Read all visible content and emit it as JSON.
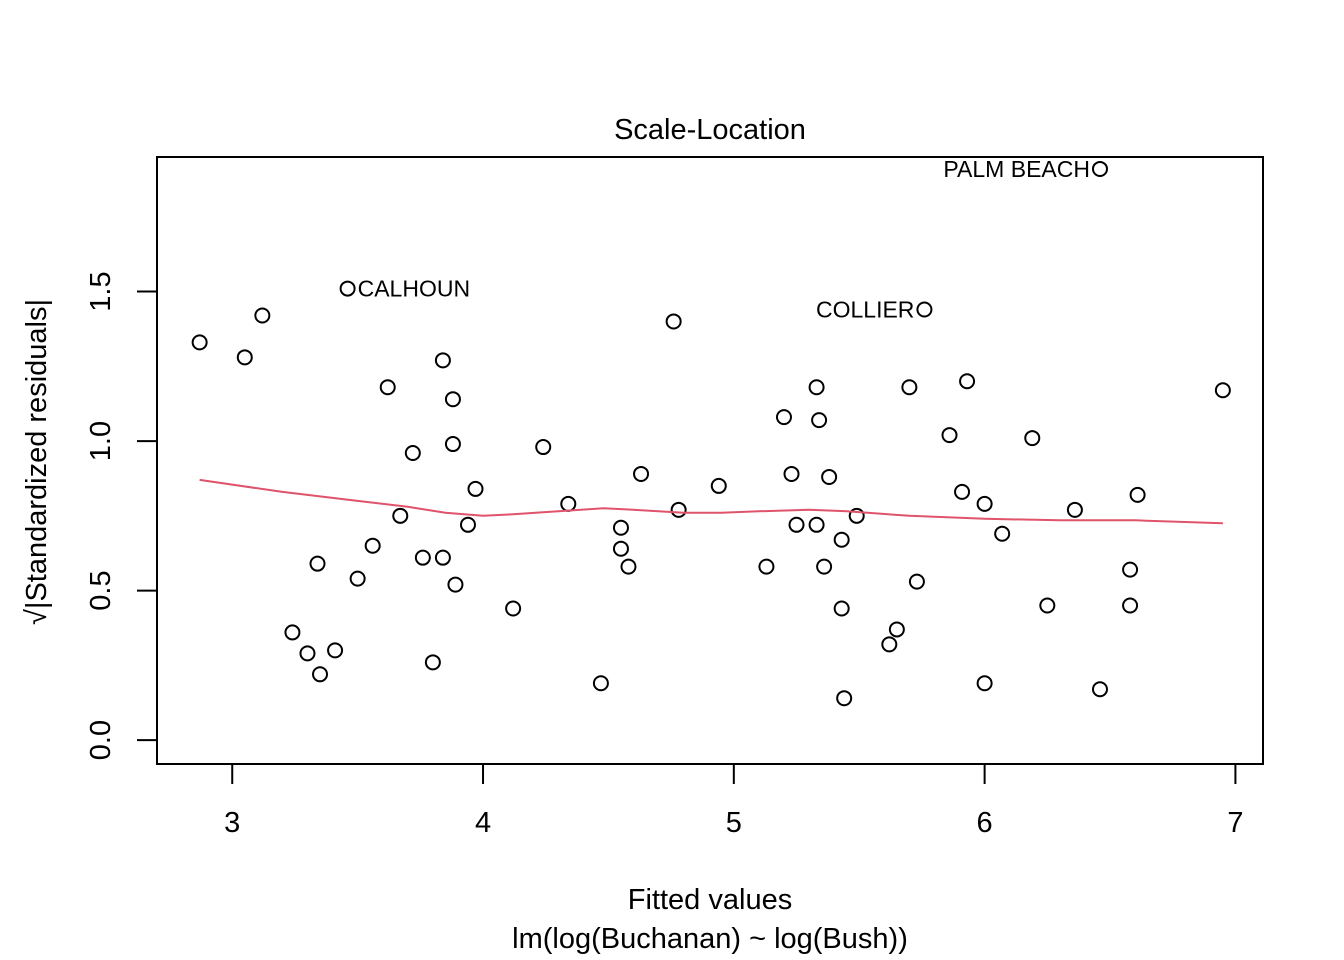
{
  "chart_data": {
    "type": "scatter",
    "title": "Scale-Location",
    "xlabel": "Fitted values",
    "xsublabel": "lm(log(Buchanan) ~ log(Bush))",
    "ylabel": "√|Standardized residuals|",
    "xlim": [
      2.7,
      7.11
    ],
    "ylim": [
      -0.08,
      1.95
    ],
    "xticks": [
      "3",
      "4",
      "5",
      "6",
      "7"
    ],
    "yticks": [
      "0.0",
      "0.5",
      "1.0",
      "1.5"
    ],
    "grid": false,
    "point_color": "#000000",
    "smooth_color": "#DF536B",
    "points": [
      {
        "x": 2.87,
        "y": 1.33
      },
      {
        "x": 3.05,
        "y": 1.28
      },
      {
        "x": 3.12,
        "y": 1.42
      },
      {
        "x": 3.24,
        "y": 0.36
      },
      {
        "x": 3.3,
        "y": 0.29
      },
      {
        "x": 3.34,
        "y": 0.59
      },
      {
        "x": 3.35,
        "y": 0.22
      },
      {
        "x": 3.41,
        "y": 0.3
      },
      {
        "x": 3.46,
        "y": 1.51
      },
      {
        "x": 3.5,
        "y": 0.54
      },
      {
        "x": 3.56,
        "y": 0.65
      },
      {
        "x": 3.62,
        "y": 1.18
      },
      {
        "x": 3.67,
        "y": 0.75
      },
      {
        "x": 3.72,
        "y": 0.96
      },
      {
        "x": 3.76,
        "y": 0.61
      },
      {
        "x": 3.8,
        "y": 0.26
      },
      {
        "x": 3.84,
        "y": 0.61
      },
      {
        "x": 3.84,
        "y": 1.27
      },
      {
        "x": 3.88,
        "y": 1.14
      },
      {
        "x": 3.88,
        "y": 0.99
      },
      {
        "x": 3.89,
        "y": 0.52
      },
      {
        "x": 3.94,
        "y": 0.72
      },
      {
        "x": 3.97,
        "y": 0.84
      },
      {
        "x": 4.12,
        "y": 0.44
      },
      {
        "x": 4.24,
        "y": 0.98
      },
      {
        "x": 4.34,
        "y": 0.79
      },
      {
        "x": 4.47,
        "y": 0.19
      },
      {
        "x": 4.55,
        "y": 0.64
      },
      {
        "x": 4.55,
        "y": 0.71
      },
      {
        "x": 4.58,
        "y": 0.58
      },
      {
        "x": 4.63,
        "y": 0.89
      },
      {
        "x": 4.76,
        "y": 1.4
      },
      {
        "x": 4.78,
        "y": 0.77
      },
      {
        "x": 4.94,
        "y": 0.85
      },
      {
        "x": 5.13,
        "y": 0.58
      },
      {
        "x": 5.2,
        "y": 1.08
      },
      {
        "x": 5.23,
        "y": 0.89
      },
      {
        "x": 5.25,
        "y": 0.72
      },
      {
        "x": 5.33,
        "y": 1.18
      },
      {
        "x": 5.33,
        "y": 0.72
      },
      {
        "x": 5.34,
        "y": 1.07
      },
      {
        "x": 5.36,
        "y": 0.58
      },
      {
        "x": 5.38,
        "y": 0.88
      },
      {
        "x": 5.43,
        "y": 0.44
      },
      {
        "x": 5.43,
        "y": 0.67
      },
      {
        "x": 5.44,
        "y": 0.14
      },
      {
        "x": 5.49,
        "y": 0.75
      },
      {
        "x": 5.62,
        "y": 0.32
      },
      {
        "x": 5.65,
        "y": 0.37
      },
      {
        "x": 5.7,
        "y": 1.18
      },
      {
        "x": 5.73,
        "y": 0.53
      },
      {
        "x": 5.76,
        "y": 1.44
      },
      {
        "x": 5.86,
        "y": 1.02
      },
      {
        "x": 5.91,
        "y": 0.83
      },
      {
        "x": 5.93,
        "y": 1.2
      },
      {
        "x": 6.0,
        "y": 0.19
      },
      {
        "x": 6.0,
        "y": 0.79
      },
      {
        "x": 6.07,
        "y": 0.69
      },
      {
        "x": 6.19,
        "y": 1.01
      },
      {
        "x": 6.25,
        "y": 0.45
      },
      {
        "x": 6.36,
        "y": 0.77
      },
      {
        "x": 6.46,
        "y": 1.91
      },
      {
        "x": 6.46,
        "y": 0.17
      },
      {
        "x": 6.58,
        "y": 0.45
      },
      {
        "x": 6.58,
        "y": 0.57
      },
      {
        "x": 6.61,
        "y": 0.82
      },
      {
        "x": 6.95,
        "y": 1.17
      }
    ],
    "smooth": [
      {
        "x": 2.87,
        "y": 0.87
      },
      {
        "x": 3.2,
        "y": 0.83
      },
      {
        "x": 3.5,
        "y": 0.8
      },
      {
        "x": 3.7,
        "y": 0.78
      },
      {
        "x": 3.85,
        "y": 0.76
      },
      {
        "x": 4.0,
        "y": 0.75
      },
      {
        "x": 4.12,
        "y": 0.755
      },
      {
        "x": 4.3,
        "y": 0.765
      },
      {
        "x": 4.48,
        "y": 0.775
      },
      {
        "x": 4.6,
        "y": 0.77
      },
      {
        "x": 4.8,
        "y": 0.76
      },
      {
        "x": 4.95,
        "y": 0.76
      },
      {
        "x": 5.1,
        "y": 0.765
      },
      {
        "x": 5.3,
        "y": 0.77
      },
      {
        "x": 5.45,
        "y": 0.765
      },
      {
        "x": 5.7,
        "y": 0.75
      },
      {
        "x": 6.0,
        "y": 0.74
      },
      {
        "x": 6.3,
        "y": 0.735
      },
      {
        "x": 6.6,
        "y": 0.735
      },
      {
        "x": 6.95,
        "y": 0.725
      }
    ],
    "annotations": [
      {
        "text": "CALHOUN",
        "x": 3.46,
        "y": 1.51,
        "side": "right"
      },
      {
        "text": "COLLIER",
        "x": 5.76,
        "y": 1.44,
        "side": "left"
      },
      {
        "text": "PALM BEACH",
        "x": 6.46,
        "y": 1.91,
        "side": "left"
      }
    ]
  }
}
